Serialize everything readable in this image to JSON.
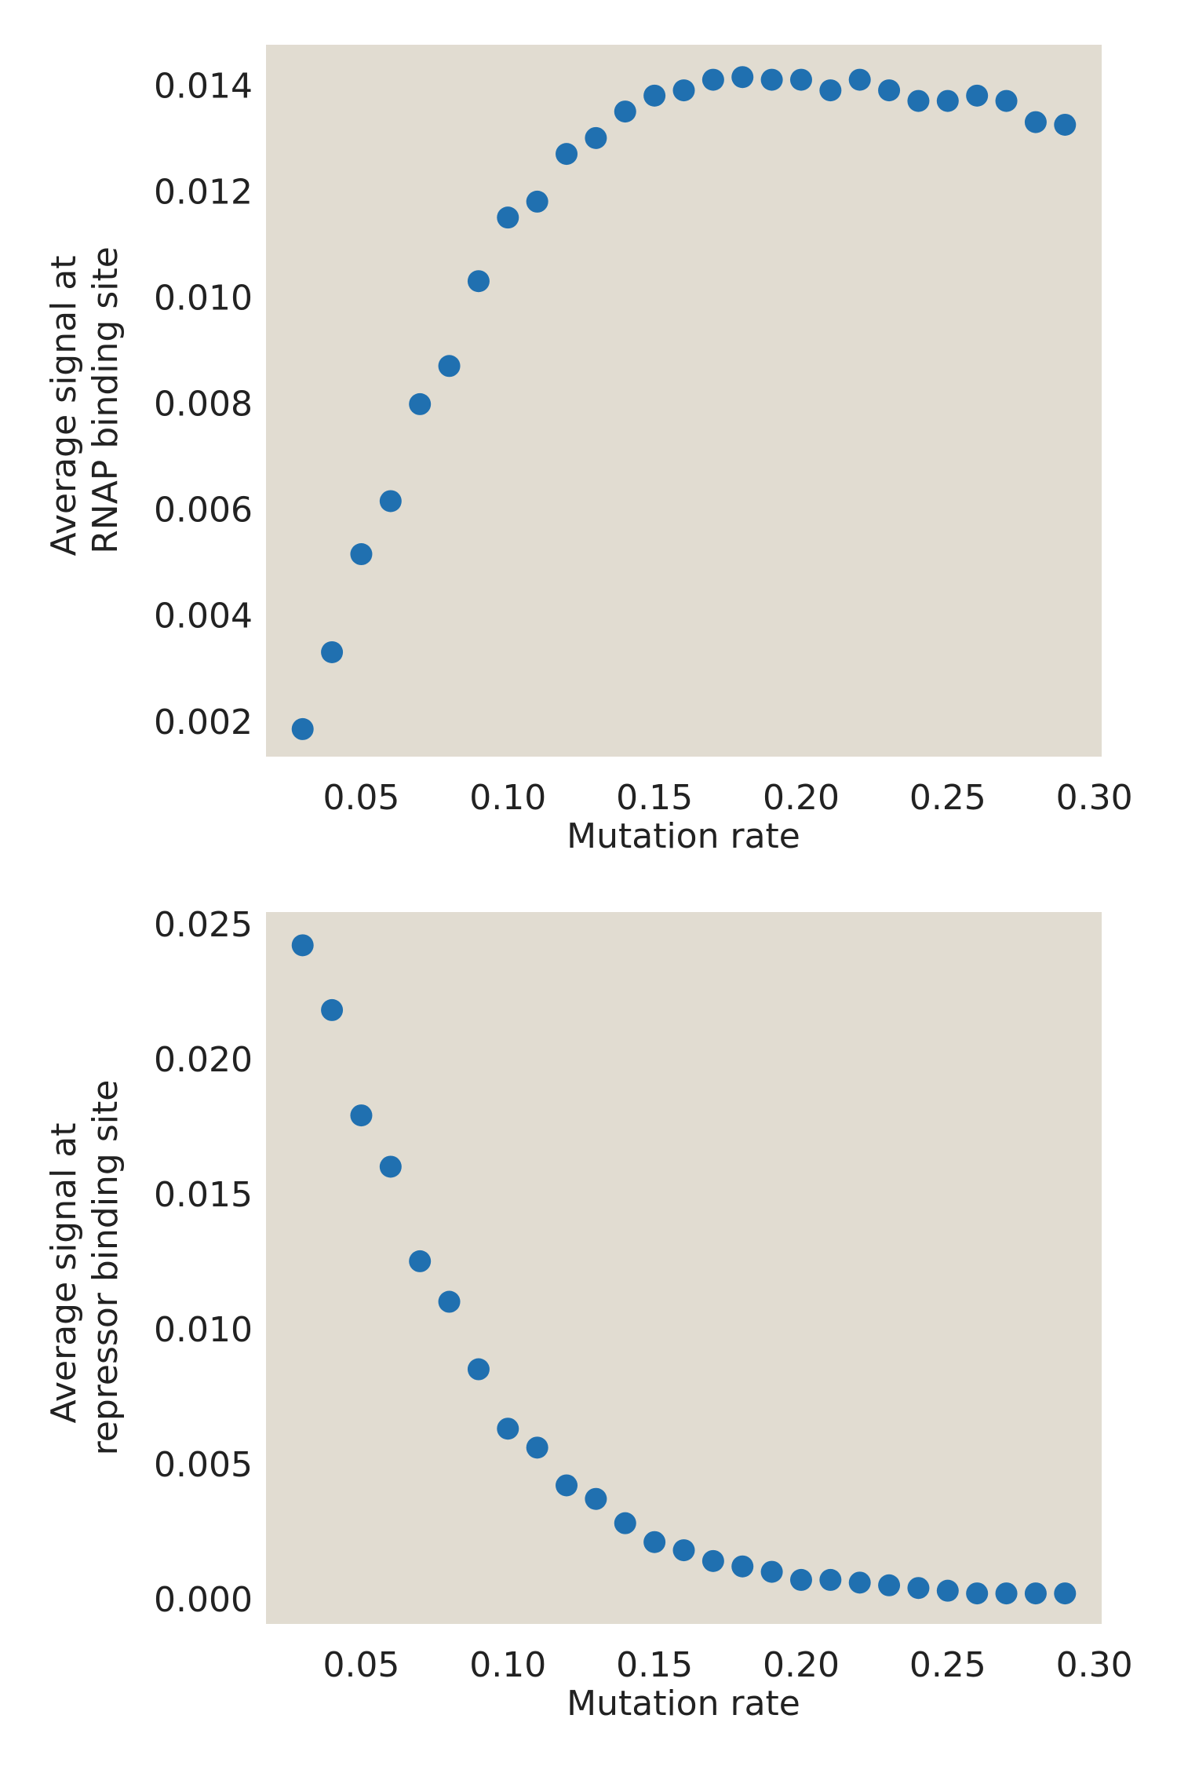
{
  "chart_data": [
    {
      "type": "scatter",
      "title": "",
      "xlabel": "Mutation rate",
      "ylabel": [
        "Average signal at",
        "RNAP binding site"
      ],
      "xlim": [
        0.0175,
        0.3025
      ],
      "ylim": [
        0.00133,
        0.01476
      ],
      "xticks": [
        "0.05",
        "0.10",
        "0.15",
        "0.20",
        "0.25",
        "0.30"
      ],
      "yticks": [
        "0.002",
        "0.004",
        "0.006",
        "0.008",
        "0.010",
        "0.012",
        "0.014"
      ],
      "grid": false,
      "colors": {
        "background": "#e1dcd1",
        "marker": "#2070b0"
      },
      "series": [
        {
          "x": [
            0.03,
            0.04,
            0.05,
            0.06,
            0.07,
            0.08,
            0.09,
            0.1,
            0.11,
            0.12,
            0.13,
            0.14,
            0.15,
            0.16,
            0.17,
            0.18,
            0.19,
            0.2,
            0.21,
            0.22,
            0.23,
            0.24,
            0.25,
            0.26,
            0.27,
            0.28,
            0.29
          ],
          "y": [
            0.00185,
            0.0033,
            0.00515,
            0.00615,
            0.00798,
            0.0087,
            0.0103,
            0.0115,
            0.0118,
            0.0127,
            0.013,
            0.0135,
            0.0138,
            0.0139,
            0.0141,
            0.01415,
            0.0141,
            0.0141,
            0.0139,
            0.0141,
            0.0139,
            0.0137,
            0.0137,
            0.0138,
            0.0137,
            0.0133,
            0.01325
          ]
        }
      ]
    },
    {
      "type": "scatter",
      "title": "",
      "xlabel": "Mutation rate",
      "ylabel": [
        "Average signal at",
        "repressor binding site"
      ],
      "xlim": [
        0.0175,
        0.3025
      ],
      "ylim": [
        -0.00093,
        0.02543
      ],
      "xticks": [
        "0.05",
        "0.10",
        "0.15",
        "0.20",
        "0.25",
        "0.30"
      ],
      "yticks": [
        "0.000",
        "0.005",
        "0.010",
        "0.015",
        "0.020",
        "0.025"
      ],
      "grid": false,
      "colors": {
        "background": "#e1dcd1",
        "marker": "#2070b0"
      },
      "series": [
        {
          "x": [
            0.03,
            0.04,
            0.05,
            0.06,
            0.07,
            0.08,
            0.09,
            0.1,
            0.11,
            0.12,
            0.13,
            0.14,
            0.15,
            0.16,
            0.17,
            0.18,
            0.19,
            0.2,
            0.21,
            0.22,
            0.23,
            0.24,
            0.25,
            0.26,
            0.27,
            0.28,
            0.29
          ],
          "y": [
            0.0242,
            0.0218,
            0.0179,
            0.016,
            0.0125,
            0.011,
            0.0085,
            0.0063,
            0.0056,
            0.0042,
            0.0037,
            0.0028,
            0.0021,
            0.0018,
            0.0014,
            0.0012,
            0.001,
            0.0007,
            0.0007,
            0.0006,
            0.0005,
            0.0004,
            0.0003,
            0.0002,
            0.0002,
            0.0002,
            0.0002
          ]
        }
      ]
    }
  ]
}
